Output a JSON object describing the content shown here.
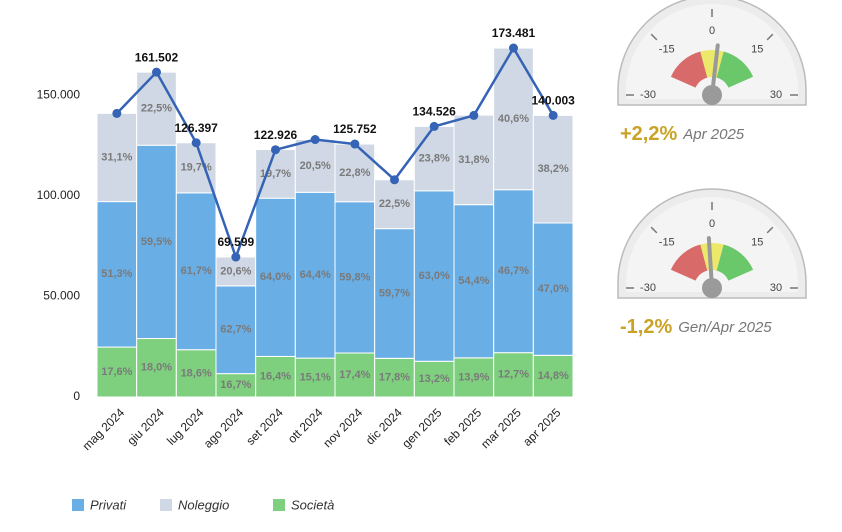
{
  "chart_data": {
    "type": "bar",
    "categories": [
      "mag 2024",
      "giu 2024",
      "lug 2024",
      "ago 2024",
      "set 2024",
      "ott 2024",
      "nov 2024",
      "dic 2024",
      "gen 2025",
      "feb 2025",
      "mar 2025",
      "apr 2025"
    ],
    "series": [
      {
        "name": "Privati",
        "color": "#6aaee6",
        "values": [
          51.3,
          59.5,
          61.7,
          62.7,
          64.0,
          64.4,
          59.8,
          59.7,
          63.0,
          54.4,
          46.7,
          47.0
        ],
        "value_labels": [
          "51,3%",
          "59,5%",
          "61,7%",
          "62,7%",
          "64,0%",
          "64,4%",
          "59,8%",
          "59,7%",
          "63,0%",
          "54,4%",
          "46,7%",
          "47,0%"
        ]
      },
      {
        "name": "Noleggio",
        "color": "#cfd8e4",
        "values": [
          31.1,
          22.5,
          19.7,
          20.6,
          19.7,
          20.5,
          22.8,
          22.5,
          23.8,
          31.8,
          40.6,
          38.2
        ],
        "value_labels": [
          "31,1%",
          "22,5%",
          "19,7%",
          "20,6%",
          "19,7%",
          "20,5%",
          "22,8%",
          "22,5%",
          "23,8%",
          "31,8%",
          "40,6%",
          "38,2%"
        ]
      },
      {
        "name": "Società",
        "color": "#7ed07e",
        "values": [
          17.6,
          18.0,
          18.6,
          16.7,
          16.4,
          15.1,
          17.4,
          17.8,
          13.2,
          13.9,
          12.7,
          14.8
        ],
        "value_labels": [
          "17,6%",
          "18,0%",
          "18,6%",
          "16,7%",
          "16,4%",
          "15,1%",
          "17,4%",
          "17,8%",
          "13,2%",
          "13,9%",
          "12,7%",
          "14,8%"
        ]
      }
    ],
    "line": {
      "type": "line",
      "color": "#3563b5",
      "values": [
        141000,
        161502,
        126397,
        69599,
        122926,
        128000,
        125752,
        108000,
        134526,
        140000,
        173481,
        140003
      ],
      "value_labels": [
        null,
        "161.502",
        "126.397",
        "69.599",
        "122.926",
        null,
        "125.752",
        null,
        "134.526",
        null,
        "173.481",
        "140.003"
      ]
    },
    "ylim": [
      0,
      175000
    ],
    "yticks": [
      0,
      {
        "value": 50000,
        "label": "50.000"
      },
      {
        "value": 100000,
        "label": "100.000"
      },
      {
        "value": 150000,
        "label": "150.000"
      }
    ]
  },
  "gauges": [
    {
      "value": 2.2,
      "label": "+2,2%",
      "period": "Apr 2025",
      "range": [
        -30,
        30
      ],
      "ticks": [
        -30,
        -15,
        0,
        15,
        30
      ]
    },
    {
      "value": -1.2,
      "label": "-1,2%",
      "period": "Gen/Apr 2025",
      "range": [
        -30,
        30
      ],
      "ticks": [
        -30,
        -15,
        0,
        15,
        30
      ]
    }
  ]
}
